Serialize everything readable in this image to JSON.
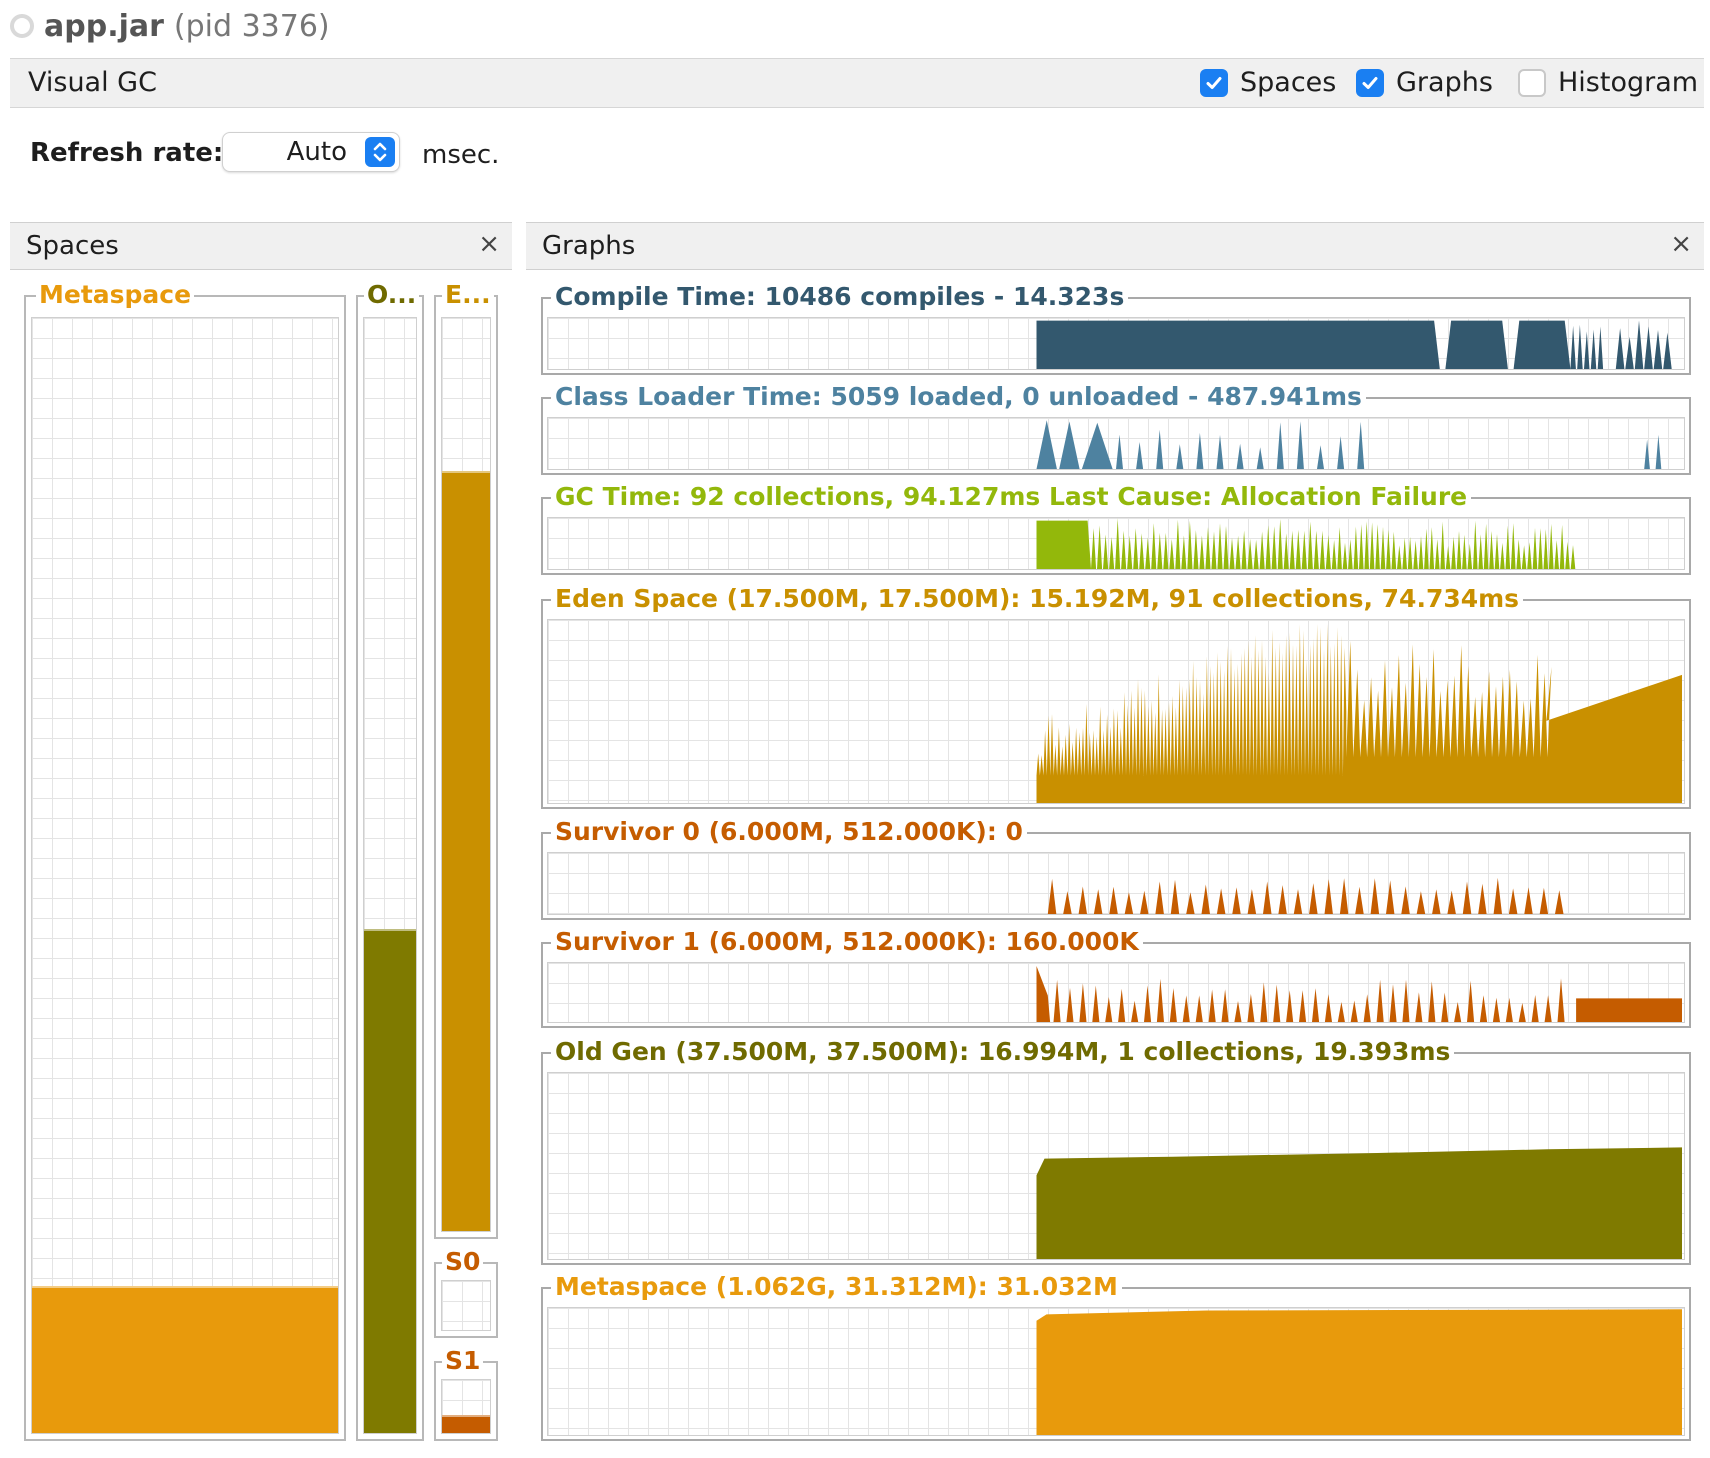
{
  "window": {
    "app_name": "app.jar",
    "pid_text": "(pid 3376)"
  },
  "header": {
    "title": "Visual GC",
    "options": [
      {
        "label": "Spaces",
        "checked": true
      },
      {
        "label": "Graphs",
        "checked": true
      },
      {
        "label": "Histogram",
        "checked": false
      }
    ]
  },
  "refresh": {
    "label": "Refresh rate:",
    "value": "Auto",
    "unit": "msec."
  },
  "spaces_panel": {
    "title": "Spaces",
    "close": "×",
    "bars": [
      {
        "label": "Metaspace",
        "fill": 0.13,
        "color": "#e89a0c",
        "label_color": "#e89a0c"
      },
      {
        "label": "O...",
        "fill": 0.45,
        "color": "#7f7a00",
        "label_color": "#6f6a00"
      },
      {
        "label": "E...",
        "fill": 0.83,
        "color": "#c99000",
        "label_color": "#c99000"
      },
      {
        "label": "S0",
        "fill": 0.0,
        "color": "#c55c00",
        "label_color": "#c55c00"
      },
      {
        "label": "S1",
        "fill": 0.3,
        "color": "#c55c00",
        "label_color": "#c55c00"
      }
    ]
  },
  "graphs_panel": {
    "title": "Graphs",
    "close": "×",
    "graphs": [
      {
        "label": "Compile Time: 10486 compiles - 14.323s",
        "color": "#33586e",
        "label_color": "#33586e",
        "pattern": "compile"
      },
      {
        "label": "Class Loader Time: 5059 loaded, 0 unloaded - 487.941ms",
        "color": "#4e82a0",
        "label_color": "#4e82a0",
        "pattern": "classloader"
      },
      {
        "label": "GC Time: 92 collections, 94.127ms Last Cause: Allocation Failure",
        "color": "#93b80b",
        "label_color": "#93b80b",
        "pattern": "gc"
      },
      {
        "label": "Eden Space (17.500M, 17.500M): 15.192M, 91 collections, 74.734ms",
        "color": "#c99000",
        "label_color": "#c99000",
        "pattern": "eden"
      },
      {
        "label": "Survivor 0 (6.000M, 512.000K): 0",
        "color": "#c55c00",
        "label_color": "#c55c00",
        "pattern": "s0"
      },
      {
        "label": "Survivor 1 (6.000M, 512.000K): 160.000K",
        "color": "#c55c00",
        "label_color": "#c55c00",
        "pattern": "s1"
      },
      {
        "label": "Old Gen (37.500M, 37.500M): 16.994M, 1 collections, 19.393ms",
        "color": "#7f7a00",
        "label_color": "#6f6a00",
        "pattern": "old"
      },
      {
        "label": "Metaspace (1.062G, 31.312M): 31.032M",
        "color": "#e89a0c",
        "label_color": "#e89a0c",
        "pattern": "meta"
      }
    ]
  }
}
